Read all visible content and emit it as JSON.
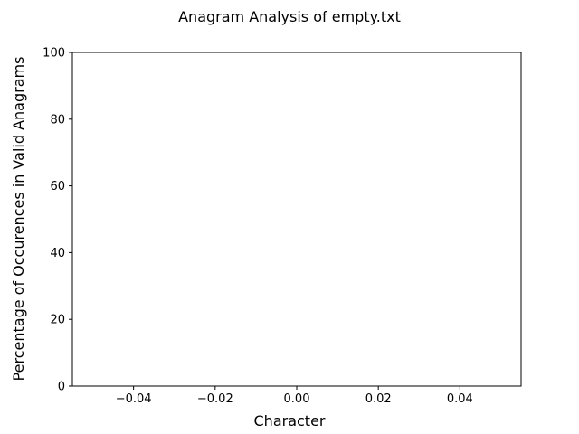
{
  "chart_data": {
    "type": "bar",
    "title": "Anagram Analysis of empty.txt",
    "xlabel": "Character",
    "ylabel": "Percentage of Occurences in Valid Anagrams",
    "categories": [],
    "values": [],
    "xlim": [
      -0.055,
      0.055
    ],
    "ylim": [
      0,
      100
    ],
    "xticks": [
      -0.04,
      -0.02,
      0.0,
      0.02,
      0.04
    ],
    "xtick_labels": [
      "−0.04",
      "−0.02",
      "0.00",
      "0.02",
      "0.04"
    ],
    "yticks": [
      0,
      20,
      40,
      60,
      80,
      100
    ],
    "ytick_labels": [
      "0",
      "20",
      "40",
      "60",
      "80",
      "100"
    ],
    "grid": false,
    "legend": "none"
  }
}
